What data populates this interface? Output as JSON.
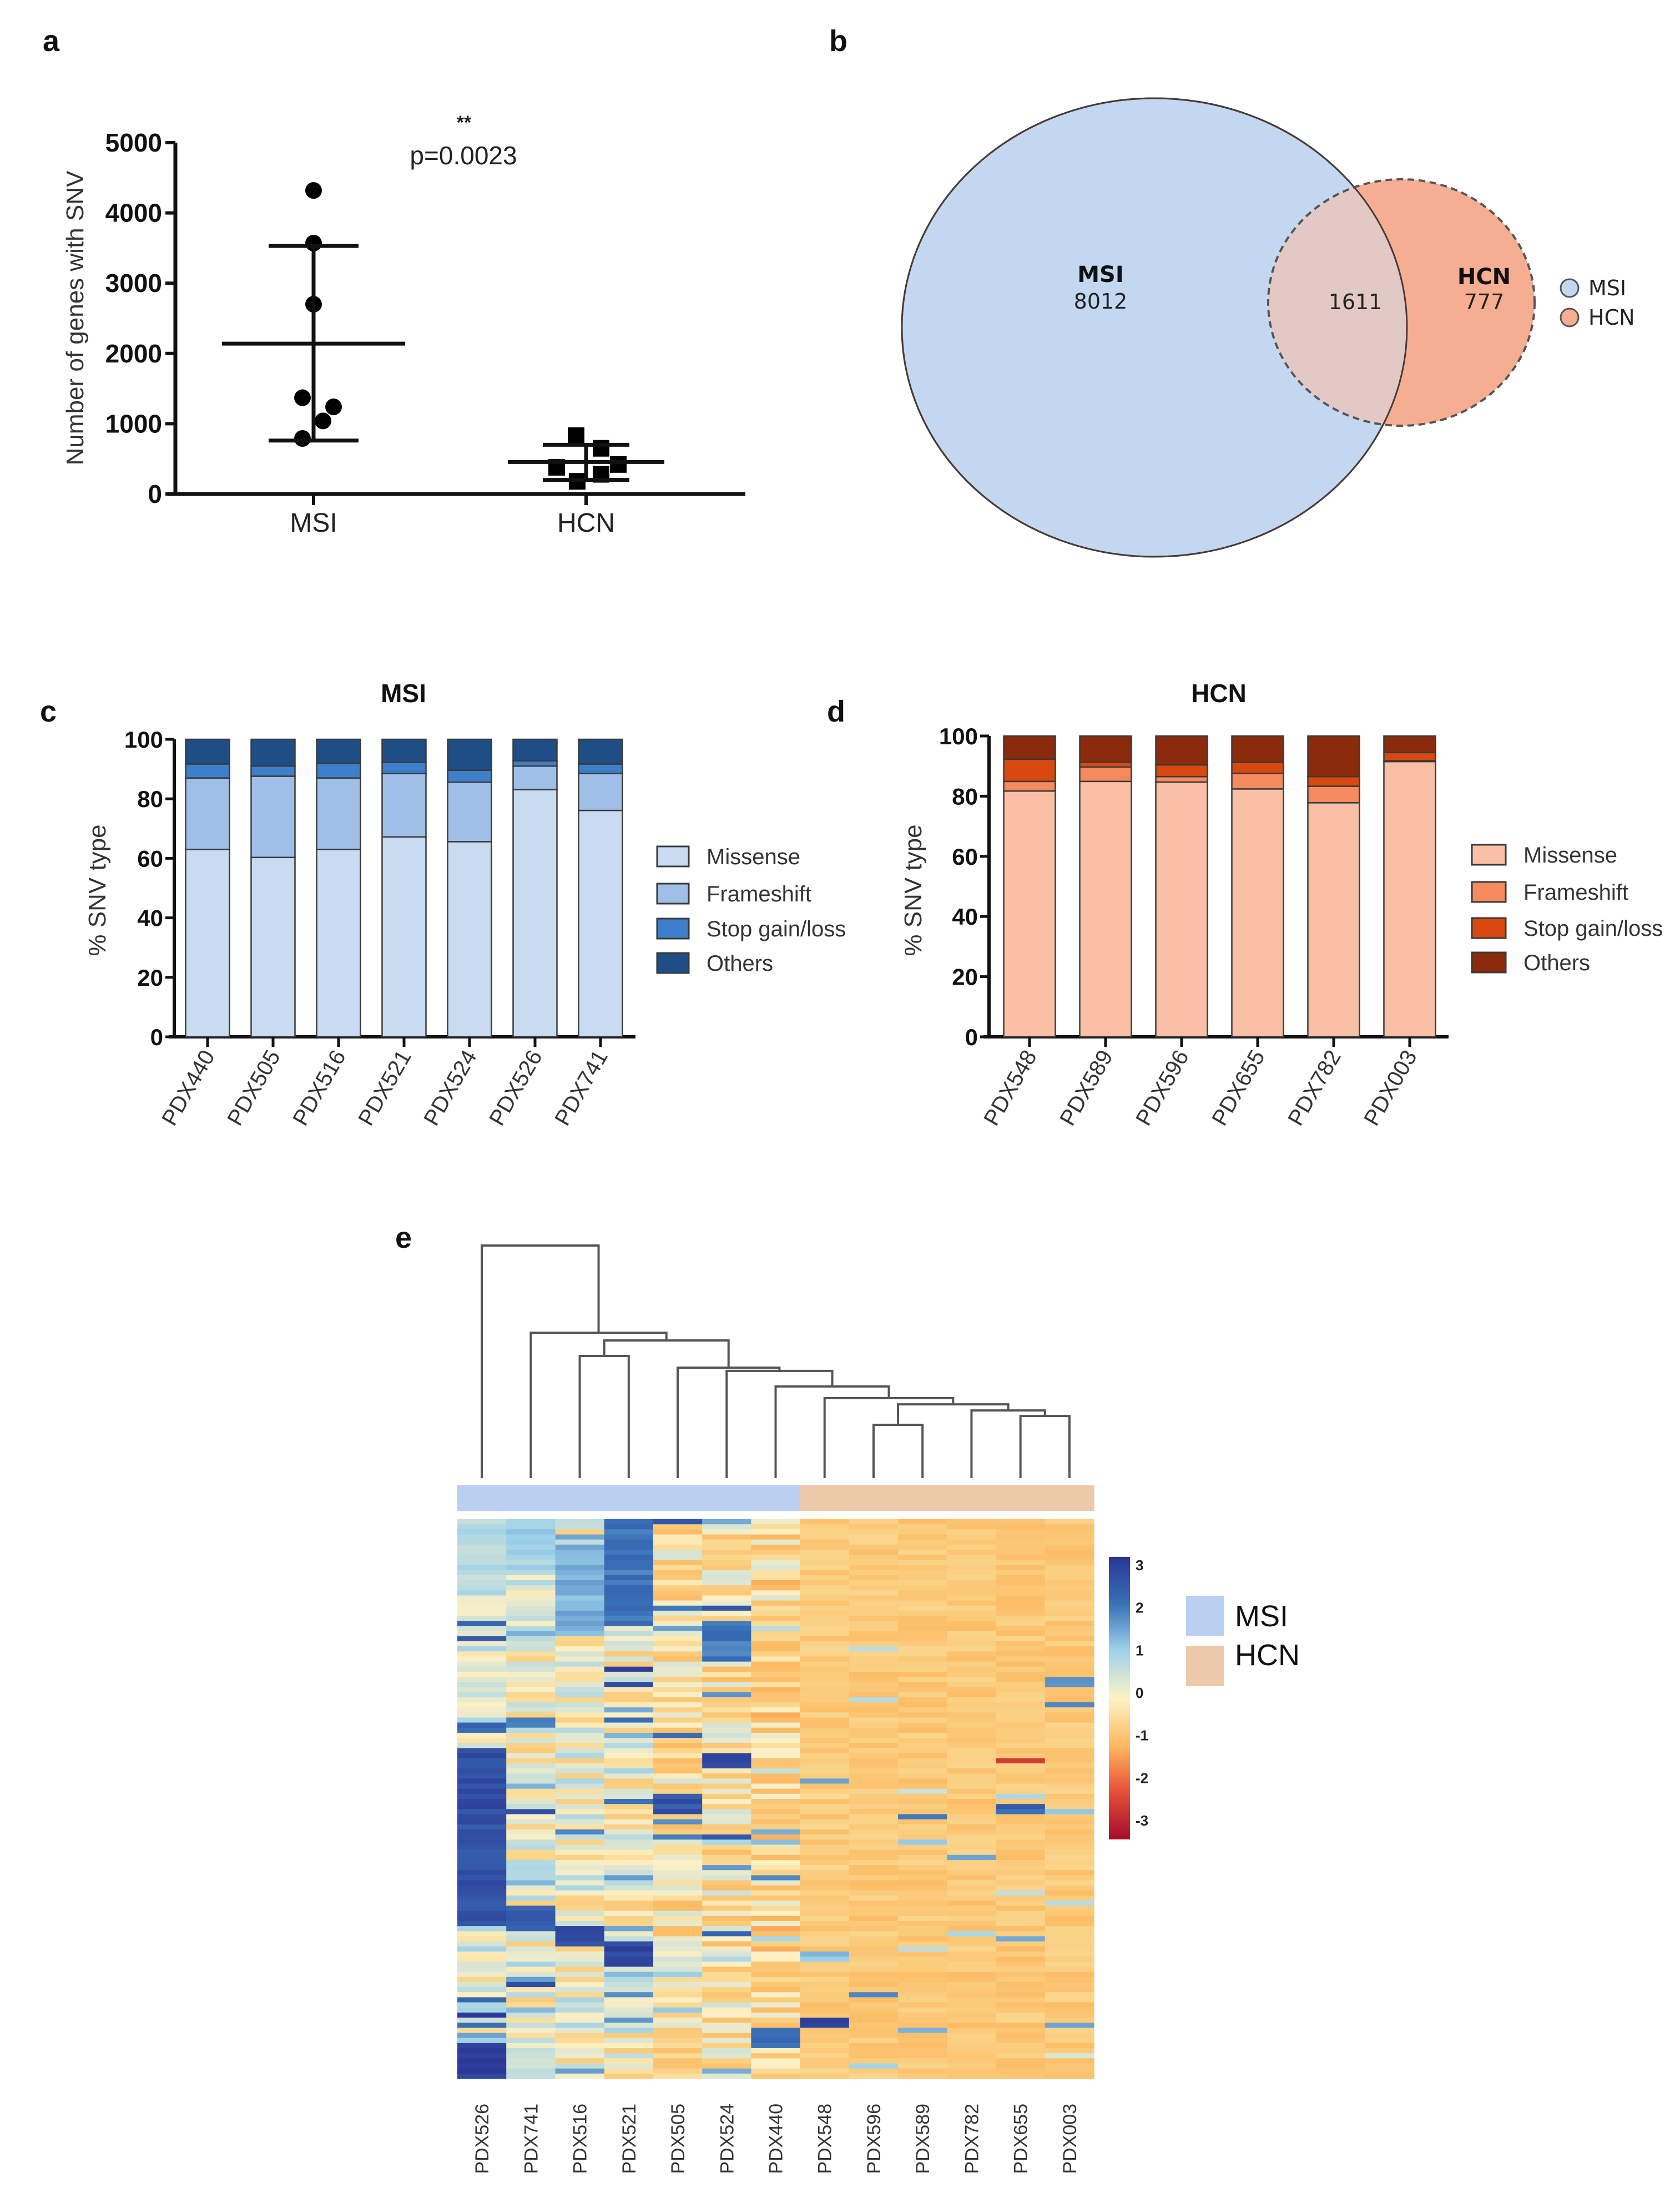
{
  "panel_labels": {
    "a": "a",
    "b": "b",
    "c": "c",
    "d": "d",
    "e": "e"
  },
  "chart_data": [
    {
      "id": "a",
      "type": "scatter",
      "ylabel": "Number of genes with SNV",
      "ylim": [
        0,
        5000
      ],
      "yticks": [
        "0",
        "1000",
        "2000",
        "3000",
        "4000",
        "5000"
      ],
      "categories": [
        "MSI",
        "HCN"
      ],
      "series": [
        {
          "name": "MSI",
          "marker": "circle",
          "values": [
            4320,
            3570,
            2700,
            1370,
            1240,
            1040,
            790
          ],
          "mean": 2140,
          "sd_low": 760,
          "sd_high": 3530
        },
        {
          "name": "HCN",
          "marker": "square",
          "values": [
            830,
            650,
            420,
            380,
            280,
            180
          ],
          "mean": 455,
          "sd_low": 200,
          "sd_high": 700
        }
      ],
      "annotation_stars": "**",
      "annotation_p": "p=0.0023"
    },
    {
      "id": "b",
      "type": "venn",
      "sets": [
        {
          "name": "MSI",
          "only": "8012",
          "color": "#c3d8f0"
        },
        {
          "name": "HCN",
          "only": "777",
          "color": "#f6ae93"
        }
      ],
      "intersection": "1611",
      "intersection_color": "#e2c9c5",
      "legend": [
        "MSI",
        "HCN"
      ]
    },
    {
      "id": "c",
      "type": "bar",
      "stacked": true,
      "title": "MSI",
      "ylabel": "% SNV type",
      "ylim": [
        0,
        100
      ],
      "yticks": [
        "0",
        "20",
        "40",
        "60",
        "80",
        "100"
      ],
      "categories": [
        "PDX440",
        "PDX505",
        "PDX516",
        "PDX521",
        "PDX524",
        "PDX526",
        "PDX741"
      ],
      "series": [
        {
          "name": "Missense",
          "color": "#c8dbf1",
          "values": [
            63.0,
            60.3,
            63.0,
            67.2,
            65.6,
            83.1,
            76.1
          ]
        },
        {
          "name": "Frameshift",
          "color": "#9fbfe6",
          "values": [
            24.0,
            27.3,
            24.0,
            21.3,
            20.0,
            7.9,
            12.4
          ]
        },
        {
          "name": "Stop gain/loss",
          "color": "#3d7fcb",
          "values": [
            4.7,
            3.4,
            5.0,
            3.8,
            4.0,
            1.8,
            3.2
          ]
        },
        {
          "name": "Others",
          "color": "#1f4e86",
          "values": [
            8.3,
            9.0,
            8.0,
            7.7,
            10.4,
            7.2,
            8.3
          ]
        }
      ]
    },
    {
      "id": "d",
      "type": "bar",
      "stacked": true,
      "title": "HCN",
      "ylabel": "% SNV type",
      "ylim": [
        0,
        100
      ],
      "yticks": [
        "0",
        "20",
        "40",
        "60",
        "80",
        "100"
      ],
      "categories": [
        "PDX548",
        "PDX589",
        "PDX596",
        "PDX655",
        "PDX782",
        "PDX003"
      ],
      "series": [
        {
          "name": "Missense",
          "color": "#f9c0a5",
          "values": [
            81.7,
            84.9,
            84.7,
            82.4,
            77.8,
            91.5
          ]
        },
        {
          "name": "Frameshift",
          "color": "#f48a5e",
          "values": [
            3.2,
            4.8,
            1.8,
            5.2,
            5.5,
            0.3
          ]
        },
        {
          "name": "Stop gain/loss",
          "color": "#d9490f",
          "values": [
            7.4,
            1.6,
            3.9,
            3.7,
            3.2,
            2.7
          ]
        },
        {
          "name": "Others",
          "color": "#8b2b0b",
          "values": [
            7.7,
            8.7,
            9.6,
            8.7,
            13.5,
            5.5
          ]
        }
      ]
    },
    {
      "id": "e",
      "type": "heatmap",
      "columns": [
        "PDX526",
        "PDX741",
        "PDX516",
        "PDX521",
        "PDX505",
        "PDX524",
        "PDX440",
        "PDX548",
        "PDX596",
        "PDX589",
        "PDX782",
        "PDX655",
        "PDX003"
      ],
      "column_groups": [
        "MSI",
        "MSI",
        "MSI",
        "MSI",
        "MSI",
        "MSI",
        "MSI",
        "HCN",
        "HCN",
        "HCN",
        "HCN",
        "HCN",
        "HCN"
      ],
      "group_colors": {
        "MSI": "#b9d0f0",
        "HCN": "#ecc9a8"
      },
      "group_legend": [
        "MSI",
        "HCN"
      ],
      "colorbar_ticks": [
        "3",
        "2",
        "1",
        "0",
        "-1",
        "-2",
        "-3"
      ],
      "value_range": [
        -3,
        3
      ],
      "row_count": 110,
      "column_bias": [
        0.35,
        0.15,
        0.2,
        0.1,
        -0.25,
        -0.2,
        -0.45,
        -0.55,
        -0.6,
        -0.6,
        -0.6,
        -0.6,
        -0.6
      ],
      "blocks": [
        {
          "col": 0,
          "rows": [
            45,
            79
          ],
          "value": 2.8
        },
        {
          "col": 0,
          "rows": [
            103,
            109
          ],
          "value": 3.0
        },
        {
          "col": 0,
          "rows": [
            0,
            14
          ],
          "value": 1.0
        },
        {
          "col": 1,
          "rows": [
            76,
            80
          ],
          "value": 2.6
        },
        {
          "col": 1,
          "rows": [
            0,
            10
          ],
          "value": 1.2
        },
        {
          "col": 2,
          "rows": [
            80,
            83
          ],
          "value": 2.9
        },
        {
          "col": 2,
          "rows": [
            5,
            22
          ],
          "value": 1.6
        },
        {
          "col": 3,
          "rows": [
            0,
            20
          ],
          "value": 2.2
        },
        {
          "col": 3,
          "rows": [
            83,
            87
          ],
          "value": 3.0
        },
        {
          "col": 4,
          "rows": [
            54,
            57
          ],
          "value": 2.7
        },
        {
          "col": 5,
          "rows": [
            20,
            27
          ],
          "value": 2.2
        },
        {
          "col": 5,
          "rows": [
            46,
            48
          ],
          "value": 2.8
        },
        {
          "col": 6,
          "rows": [
            100,
            103
          ],
          "value": 2.4
        },
        {
          "col": 7,
          "rows": [
            98,
            99
          ],
          "value": 3.0
        },
        {
          "col": 9,
          "rows": [
            58,
            58
          ],
          "value": 2.4
        },
        {
          "col": 11,
          "rows": [
            56,
            57
          ],
          "value": 2.5
        },
        {
          "col": 11,
          "rows": [
            47,
            47
          ],
          "value": -2.0
        },
        {
          "col": 12,
          "rows": [
            36,
            36
          ],
          "value": 2.0
        }
      ],
      "dendrogram": {
        "merges": [
          [
            8,
            9,
            22.9
          ],
          [
            11,
            12,
            26.7
          ],
          [
            10,
            14,
            29.1
          ],
          [
            13,
            15,
            31.7
          ],
          [
            7,
            16,
            34.4
          ],
          [
            6,
            17,
            39.4
          ],
          [
            5,
            18,
            46.1
          ],
          [
            4,
            19,
            47.5
          ],
          [
            2,
            3,
            52.5
          ],
          [
            21,
            20,
            59.2
          ],
          [
            1,
            22,
            62.5
          ],
          [
            0,
            23,
            100
          ]
        ]
      }
    }
  ]
}
